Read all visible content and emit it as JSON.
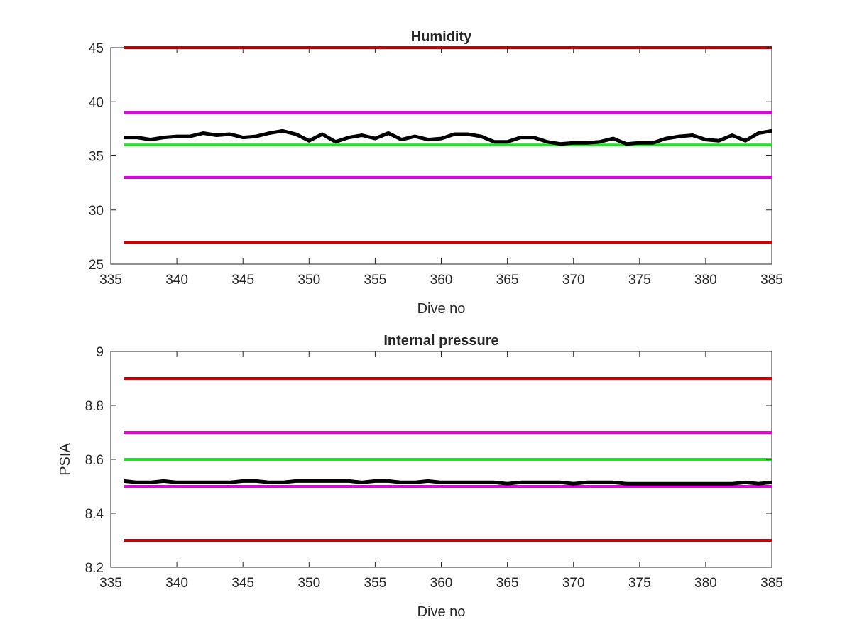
{
  "chart_data": [
    {
      "type": "line",
      "title": "Humidity",
      "xlabel": "Dive no",
      "ylabel": "",
      "xlim": [
        335,
        385
      ],
      "ylim": [
        25,
        45
      ],
      "xticks": [
        "335",
        "340",
        "345",
        "350",
        "355",
        "360",
        "365",
        "370",
        "375",
        "380",
        "385"
      ],
      "yticks": [
        "25",
        "30",
        "35",
        "40",
        "45"
      ],
      "grid": false,
      "thresholds": [
        {
          "value": 45,
          "color": "#cc0000"
        },
        {
          "value": 39,
          "color": "#e600e6"
        },
        {
          "value": 36,
          "color": "#22e022"
        },
        {
          "value": 33,
          "color": "#e600e6"
        },
        {
          "value": 27,
          "color": "#cc0000"
        }
      ],
      "series": [
        {
          "color": "#000000",
          "x": [
            336,
            337,
            338,
            339,
            340,
            341,
            342,
            343,
            344,
            345,
            346,
            347,
            348,
            349,
            350,
            351,
            352,
            353,
            354,
            355,
            356,
            357,
            358,
            359,
            360,
            361,
            362,
            363,
            364,
            365,
            366,
            367,
            368,
            369,
            370,
            371,
            372,
            373,
            374,
            375,
            376,
            377,
            378,
            379,
            380,
            381,
            382,
            383,
            384,
            385
          ],
          "y": [
            36.7,
            36.7,
            36.5,
            36.7,
            36.8,
            36.8,
            37.1,
            36.9,
            37.0,
            36.7,
            36.8,
            37.1,
            37.3,
            37.0,
            36.4,
            37.0,
            36.3,
            36.7,
            36.9,
            36.6,
            37.1,
            36.5,
            36.8,
            36.5,
            36.6,
            37.0,
            37.0,
            36.8,
            36.3,
            36.3,
            36.7,
            36.7,
            36.3,
            36.1,
            36.2,
            36.2,
            36.3,
            36.6,
            36.1,
            36.2,
            36.2,
            36.6,
            36.8,
            36.9,
            36.5,
            36.4,
            36.9,
            36.4,
            37.1,
            37.3
          ]
        }
      ]
    },
    {
      "type": "line",
      "title": "Internal pressure",
      "xlabel": "Dive no",
      "ylabel": "PSIA",
      "xlim": [
        335,
        385
      ],
      "ylim": [
        8.2,
        9
      ],
      "xticks": [
        "335",
        "340",
        "345",
        "350",
        "355",
        "360",
        "365",
        "370",
        "375",
        "380",
        "385"
      ],
      "yticks": [
        "8.2",
        "8.4",
        "8.6",
        "8.8",
        "9"
      ],
      "grid": false,
      "thresholds": [
        {
          "value": 8.9,
          "color": "#cc0000"
        },
        {
          "value": 8.7,
          "color": "#e600e6"
        },
        {
          "value": 8.6,
          "color": "#22e022"
        },
        {
          "value": 8.5,
          "color": "#e600e6"
        },
        {
          "value": 8.3,
          "color": "#cc0000"
        }
      ],
      "series": [
        {
          "color": "#000000",
          "x": [
            336,
            337,
            338,
            339,
            340,
            341,
            342,
            343,
            344,
            345,
            346,
            347,
            348,
            349,
            350,
            351,
            352,
            353,
            354,
            355,
            356,
            357,
            358,
            359,
            360,
            361,
            362,
            363,
            364,
            365,
            366,
            367,
            368,
            369,
            370,
            371,
            372,
            373,
            374,
            375,
            376,
            377,
            378,
            379,
            380,
            381,
            382,
            383,
            384,
            385
          ],
          "y": [
            8.52,
            8.515,
            8.515,
            8.52,
            8.515,
            8.515,
            8.515,
            8.515,
            8.515,
            8.52,
            8.52,
            8.515,
            8.515,
            8.52,
            8.52,
            8.52,
            8.52,
            8.52,
            8.515,
            8.52,
            8.52,
            8.515,
            8.515,
            8.52,
            8.515,
            8.515,
            8.515,
            8.515,
            8.515,
            8.51,
            8.515,
            8.515,
            8.515,
            8.515,
            8.51,
            8.515,
            8.515,
            8.515,
            8.51,
            8.51,
            8.51,
            8.51,
            8.51,
            8.51,
            8.51,
            8.51,
            8.51,
            8.515,
            8.51,
            8.515
          ]
        }
      ]
    }
  ]
}
